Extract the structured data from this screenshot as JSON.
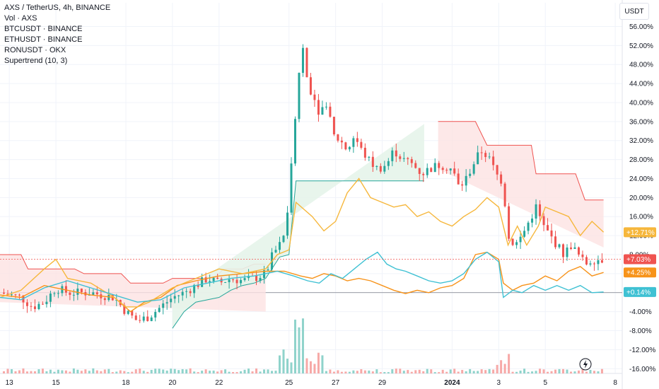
{
  "legend": {
    "title": "AXS / TetherUS, 4h, BINANCE",
    "items": [
      "Vol · AXS",
      "BTCUSDT · BINANCE",
      "ETHUSDT · BINANCE",
      "RONUSDT · OKX",
      "Supertrend (10, 3)"
    ]
  },
  "axis_unit": "USDT",
  "colors": {
    "up": "#26a69a",
    "down": "#ef5350",
    "vol_up": "#8fd3cb",
    "vol_down": "#f7a9a7",
    "btc": "#f7931a",
    "eth": "#f6b73c",
    "ron": "#3fc1d3",
    "st_up_fill": "#e6f4ea",
    "st_down_fill": "#fde2e2",
    "grid": "#f0f3fa"
  },
  "chart_data": {
    "type": "line",
    "title": "AXS / TetherUS, 4h, BINANCE",
    "y_unit": "percent change",
    "ylim": [
      -17,
      58
    ],
    "y_ticks": [
      "56.00%",
      "52.00%",
      "48.00%",
      "44.00%",
      "40.00%",
      "36.00%",
      "32.00%",
      "28.00%",
      "24.00%",
      "20.00%",
      "16.00%",
      "12.00%",
      "8.00%",
      "4.00%",
      "0.00%",
      "-4.00%",
      "-8.00%",
      "-12.00%",
      "-16.00%"
    ],
    "y_tick_values": [
      56,
      52,
      48,
      44,
      40,
      36,
      32,
      28,
      24,
      20,
      16,
      12,
      8,
      4,
      0,
      -4,
      -8,
      -12,
      -16
    ],
    "x_ticks": [
      {
        "label": "13",
        "day": 0
      },
      {
        "label": "15",
        "day": 2
      },
      {
        "label": "18",
        "day": 5
      },
      {
        "label": "20",
        "day": 7
      },
      {
        "label": "22",
        "day": 9
      },
      {
        "label": "25",
        "day": 12
      },
      {
        "label": "27",
        "day": 14
      },
      {
        "label": "29",
        "day": 16
      },
      {
        "label": "2024",
        "day": 19
      },
      {
        "label": "3",
        "day": 21
      },
      {
        "label": "5",
        "day": 23
      },
      {
        "label": "8",
        "day": 26
      }
    ],
    "x_range_days": [
      -0.4,
      26.3
    ],
    "series": [
      {
        "name": "BTCUSDT · BINANCE",
        "last_label": "+4.25%",
        "last": 4.25,
        "points": [
          [
            -0.4,
            -0.5
          ],
          [
            0.5,
            -1
          ],
          [
            1.5,
            1.5
          ],
          [
            2.5,
            0.5
          ],
          [
            3.5,
            -0.5
          ],
          [
            4.5,
            -1
          ],
          [
            5.2,
            -4
          ],
          [
            5.8,
            -2
          ],
          [
            6.5,
            -1
          ],
          [
            7.2,
            1.5
          ],
          [
            8,
            2.5
          ],
          [
            9,
            3.5
          ],
          [
            10,
            4
          ],
          [
            11,
            4.5
          ],
          [
            11.8,
            4.5
          ],
          [
            12.5,
            3.5
          ],
          [
            13,
            3
          ],
          [
            13.5,
            4
          ],
          [
            14,
            3.5
          ],
          [
            14.5,
            2.5
          ],
          [
            15,
            3
          ],
          [
            15.5,
            2.5
          ],
          [
            16,
            1.5
          ],
          [
            16.5,
            0.5
          ],
          [
            17,
            -0.2
          ],
          [
            17.5,
            0.5
          ],
          [
            18,
            0
          ],
          [
            18.5,
            1
          ],
          [
            19,
            1.5
          ],
          [
            19.5,
            3
          ],
          [
            20,
            8
          ],
          [
            20.5,
            8.5
          ],
          [
            21,
            7
          ],
          [
            21.2,
            2
          ],
          [
            21.6,
            0.5
          ],
          [
            22,
            1.5
          ],
          [
            22.5,
            2
          ],
          [
            23,
            3.5
          ],
          [
            23.5,
            2.5
          ],
          [
            24,
            4.5
          ],
          [
            24.5,
            5.5
          ],
          [
            25,
            3.5
          ],
          [
            25.5,
            4.25
          ]
        ]
      },
      {
        "name": "ETHUSDT · BINANCE",
        "last_label": "+12.71%",
        "last": 12.71,
        "points": [
          [
            -0.4,
            -1
          ],
          [
            0.5,
            0.5
          ],
          [
            1.5,
            5
          ],
          [
            2,
            7
          ],
          [
            2.5,
            3
          ],
          [
            3.5,
            2
          ],
          [
            4.5,
            -1
          ],
          [
            5,
            -3
          ],
          [
            5.5,
            -3
          ],
          [
            6,
            -2
          ],
          [
            7,
            1
          ],
          [
            8,
            3
          ],
          [
            9,
            5
          ],
          [
            10,
            4
          ],
          [
            11,
            5
          ],
          [
            11.5,
            8
          ],
          [
            12,
            9
          ],
          [
            12.3,
            19
          ],
          [
            13,
            16
          ],
          [
            13.5,
            13
          ],
          [
            14,
            15
          ],
          [
            14.5,
            21
          ],
          [
            15,
            24
          ],
          [
            15.5,
            20
          ],
          [
            16,
            19
          ],
          [
            16.5,
            18
          ],
          [
            17,
            18.5
          ],
          [
            17.5,
            16
          ],
          [
            18,
            17
          ],
          [
            18.5,
            15
          ],
          [
            19,
            14
          ],
          [
            19.5,
            16
          ],
          [
            20,
            17.5
          ],
          [
            20.5,
            20
          ],
          [
            21,
            18
          ],
          [
            21.4,
            10
          ],
          [
            21.8,
            14
          ],
          [
            22.2,
            10
          ],
          [
            22.7,
            14
          ],
          [
            23,
            18
          ],
          [
            23.5,
            17
          ],
          [
            24,
            16
          ],
          [
            24.5,
            12
          ],
          [
            25,
            15
          ],
          [
            25.5,
            12.71
          ]
        ]
      },
      {
        "name": "RONUSDT · OKX",
        "last_label": "+0.14%",
        "last": 0.14,
        "points": [
          [
            -0.4,
            -1
          ],
          [
            0.5,
            -1.5
          ],
          [
            1.5,
            1
          ],
          [
            2.5,
            2.5
          ],
          [
            3.5,
            1
          ],
          [
            4.5,
            -0.5
          ],
          [
            5.5,
            -2
          ],
          [
            6.5,
            -1.5
          ],
          [
            7.5,
            1
          ],
          [
            8.5,
            2
          ],
          [
            9.5,
            3
          ],
          [
            10.5,
            3.5
          ],
          [
            11.5,
            4.5
          ],
          [
            12.2,
            3.5
          ],
          [
            12.8,
            2.5
          ],
          [
            13.3,
            2
          ],
          [
            13.8,
            4
          ],
          [
            14.3,
            3
          ],
          [
            14.8,
            5
          ],
          [
            15.3,
            7
          ],
          [
            15.8,
            8.5
          ],
          [
            16.2,
            6
          ],
          [
            16.6,
            5
          ],
          [
            17,
            4.5
          ],
          [
            17.5,
            3.5
          ],
          [
            18,
            2.5
          ],
          [
            18.5,
            2
          ],
          [
            19,
            2.5
          ],
          [
            19.5,
            4
          ],
          [
            20,
            7
          ],
          [
            20.5,
            8.5
          ],
          [
            21,
            6.5
          ],
          [
            21.2,
            -1
          ],
          [
            21.6,
            0.5
          ],
          [
            22,
            0
          ],
          [
            22.5,
            1.5
          ],
          [
            23,
            0.5
          ],
          [
            23.5,
            1.5
          ],
          [
            24,
            0.5
          ],
          [
            24.5,
            1.5
          ],
          [
            25,
            0
          ],
          [
            25.5,
            0.14
          ]
        ]
      },
      {
        "name": "AXS / TetherUS",
        "last_label": "+7.03%",
        "last": 7.03
      }
    ],
    "supertrend": {
      "name": "Supertrend (10, 3)",
      "down_segments": [
        [
          [
            -0.4,
            8
          ],
          [
            0.5,
            8
          ],
          [
            0.8,
            5
          ],
          [
            2.8,
            5
          ],
          [
            3.2,
            4
          ],
          [
            4.8,
            4
          ],
          [
            5.2,
            2
          ],
          [
            6.6,
            2
          ],
          [
            7,
            3
          ],
          [
            8.8,
            3
          ],
          [
            9.2,
            5
          ],
          [
            10,
            5
          ],
          [
            10.5,
            6
          ],
          [
            11,
            6
          ]
        ],
        [
          [
            18.4,
            36
          ],
          [
            20,
            36
          ],
          [
            20.5,
            31
          ],
          [
            22.4,
            31
          ],
          [
            22.6,
            25
          ],
          [
            24.3,
            25
          ],
          [
            24.7,
            19.5
          ],
          [
            25.5,
            19.5
          ]
        ]
      ],
      "up_segments": [
        [
          [
            7,
            -7.5
          ],
          [
            7.5,
            -4
          ],
          [
            8,
            -2
          ],
          [
            9,
            -1
          ],
          [
            9.5,
            0.5
          ],
          [
            10,
            1.5
          ],
          [
            10.5,
            2
          ],
          [
            11,
            3
          ],
          [
            11.6,
            7.5
          ],
          [
            12,
            8
          ],
          [
            12.3,
            23.5
          ],
          [
            15.5,
            23.5
          ],
          [
            16.5,
            23.5
          ],
          [
            17.8,
            23.5
          ]
        ]
      ]
    },
    "volume_note": "Volume histogram under price, tallest bars near day 12"
  }
}
